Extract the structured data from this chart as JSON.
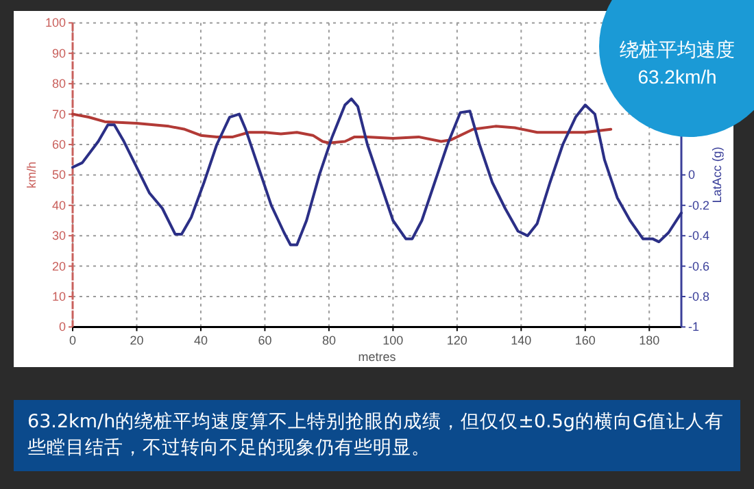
{
  "chart_data": {
    "type": "line",
    "xlabel": "metres",
    "ylabel": "km/h",
    "y2label": "LatAcc (g)",
    "xlim": [
      0,
      190
    ],
    "xticks": [
      0,
      20,
      40,
      60,
      80,
      100,
      120,
      140,
      160,
      180
    ],
    "ylim": [
      0,
      100
    ],
    "yticks": [
      0,
      10,
      20,
      30,
      40,
      50,
      60,
      70,
      80,
      90,
      100
    ],
    "y2lim": [
      -1,
      1
    ],
    "y2ticks": [
      -1,
      -0.8,
      -0.6,
      -0.4,
      -0.2,
      0
    ],
    "grid": true,
    "marker": "none",
    "line_style": "solid",
    "series": [
      {
        "color": "#b23a36",
        "x": [
          0,
          5,
          10,
          20,
          30,
          35,
          40,
          45,
          50,
          55,
          60,
          65,
          70,
          75,
          78,
          80,
          85,
          88,
          92,
          100,
          108,
          115,
          118,
          125,
          132,
          138,
          145,
          152,
          160,
          168
        ],
        "values": [
          70,
          69,
          67.5,
          67,
          66,
          65,
          63,
          62.5,
          62.5,
          64,
          64,
          63.5,
          64,
          63,
          61,
          60.5,
          61,
          62.5,
          62.5,
          62,
          62.5,
          61,
          61.5,
          65,
          66,
          65.5,
          64,
          64,
          64,
          65
        ]
      },
      {
        "color": "#2b2f86",
        "axis": "y2",
        "x": [
          0,
          3,
          8,
          11,
          13,
          16,
          20,
          24,
          28,
          32,
          34,
          37,
          41,
          45,
          49,
          52,
          54,
          58,
          62,
          66,
          68,
          70,
          73,
          77,
          81,
          85,
          87,
          89,
          92,
          96,
          100,
          104,
          106,
          109,
          113,
          117,
          121,
          124,
          127,
          131,
          135,
          139,
          142,
          145,
          149,
          153,
          157,
          160,
          163,
          166,
          170,
          174,
          178,
          181,
          183,
          186,
          190
        ],
        "values": [
          0.05,
          0.08,
          0.22,
          0.33,
          0.33,
          0.22,
          0.05,
          -0.12,
          -0.22,
          -0.39,
          -0.39,
          -0.28,
          -0.05,
          0.2,
          0.38,
          0.4,
          0.3,
          0.05,
          -0.2,
          -0.38,
          -0.46,
          -0.46,
          -0.3,
          0,
          0.25,
          0.46,
          0.5,
          0.45,
          0.2,
          -0.05,
          -0.3,
          -0.42,
          -0.42,
          -0.3,
          -0.05,
          0.2,
          0.41,
          0.42,
          0.2,
          -0.05,
          -0.22,
          -0.37,
          -0.4,
          -0.32,
          -0.05,
          0.2,
          0.38,
          0.46,
          0.4,
          0.1,
          -0.15,
          -0.3,
          -0.42,
          -0.42,
          -0.44,
          -0.38,
          -0.25
        ]
      }
    ],
    "annotations": [
      "绕桩平均速度",
      "63.2km/h",
      "63.2km/h的绕桩平均速度算不上特别抢眼的成绩，但仅仅±0.5g的横向G值让人有些瞠目结舌，不过转向不足的现象仍有些明显。"
    ]
  }
}
